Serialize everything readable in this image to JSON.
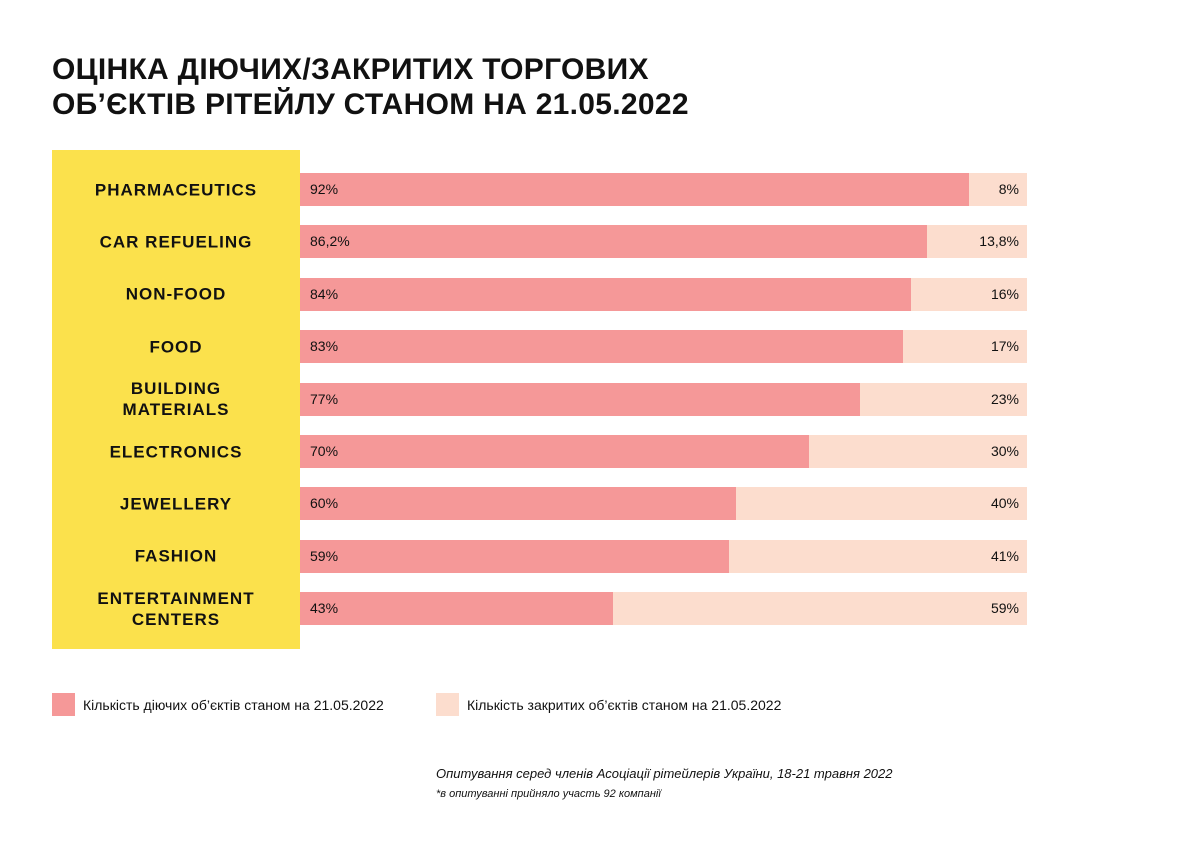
{
  "chart_data": {
    "type": "bar",
    "orientation": "horizontal",
    "stacked": true,
    "title": [
      "ОЦІНКА ДІЮЧИХ/ЗАКРИТИХ ТОРГОВИХ",
      "ОБ’ЄКТІВ РІТЕЙЛУ СТАНОМ НА 21.05.2022"
    ],
    "categories": [
      [
        "PHARMACEUTICS"
      ],
      [
        "CAR REFUELING"
      ],
      [
        "NON-FOOD"
      ],
      [
        "FOOD"
      ],
      [
        "BUILDING",
        "MATERIALS"
      ],
      [
        "ELECTRONICS"
      ],
      [
        "JEWELLERY"
      ],
      [
        "FASHION"
      ],
      [
        "ENTERTAINMENT",
        "CENTERS"
      ]
    ],
    "series": [
      {
        "name": "Кількість діючих об’єктів станом на 21.05.2022",
        "color": "#F59898",
        "values": [
          92,
          86.2,
          84,
          83,
          77,
          70,
          60,
          59,
          43
        ],
        "labels": [
          "92%",
          "86,2%",
          "84%",
          "83%",
          "77%",
          "70%",
          "60%",
          "59%",
          "43%"
        ]
      },
      {
        "name": "Кількість закритих об’єктів станом на 21.05.2022",
        "color": "#FCDDCE",
        "values": [
          8,
          13.8,
          16,
          17,
          23,
          30,
          40,
          41,
          59
        ],
        "labels": [
          "8%",
          "13,8%",
          "16%",
          "17%",
          "23%",
          "30%",
          "40%",
          "41%",
          "59%"
        ]
      }
    ],
    "xlim": [
      0,
      100
    ],
    "legend": "bottom"
  },
  "footnote": {
    "source": "Опитування серед членів Асоціації рітейлерів України, 18-21 травня 2022",
    "note": "*в опитуванні прийняло участь 92 компанії"
  }
}
